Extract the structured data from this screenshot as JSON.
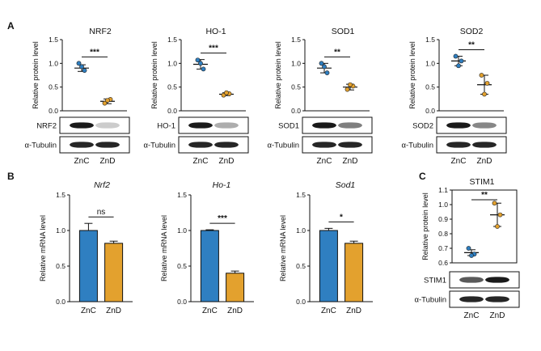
{
  "panels": {
    "A": {
      "letter": "A"
    },
    "B": {
      "letter": "B"
    },
    "C": {
      "letter": "C"
    }
  },
  "colors": {
    "znc": "#2f7fc1",
    "znd": "#e3a12e",
    "axis": "#111111",
    "band": "#1a1a1a"
  },
  "chart_data": [
    {
      "id": "a1",
      "type": "scatter",
      "title": "NRF2",
      "ylabel": "Relative protein level",
      "categories": [
        "ZnC",
        "ZnD"
      ],
      "ylim": [
        0,
        1.5
      ],
      "yticks": [
        "0.0",
        "0.5",
        "1.0",
        "1.5"
      ],
      "points": [
        [
          1.0,
          0.85,
          0.93
        ],
        [
          0.16,
          0.24,
          0.22
        ]
      ],
      "mean": [
        0.9,
        0.2
      ],
      "sd": [
        0.07,
        0.05
      ],
      "sig": "***",
      "blot_labels": [
        "NRF2",
        "α-Tubulin"
      ]
    },
    {
      "id": "a2",
      "type": "scatter",
      "title": "HO-1",
      "ylabel": "Relative protein level",
      "categories": [
        "ZnC",
        "ZnD"
      ],
      "ylim": [
        0,
        1.5
      ],
      "yticks": [
        "0.0",
        "0.5",
        "1.0",
        "1.5"
      ],
      "points": [
        [
          1.07,
          0.88,
          1.0
        ],
        [
          0.33,
          0.36,
          0.38
        ]
      ],
      "mean": [
        0.98,
        0.35
      ],
      "sd": [
        0.1,
        0.03
      ],
      "sig": "***",
      "blot_labels": [
        "HO-1",
        "α-Tubulin"
      ]
    },
    {
      "id": "a3",
      "type": "scatter",
      "title": "SOD1",
      "ylabel": "Relative protein level",
      "categories": [
        "ZnC",
        "ZnD"
      ],
      "ylim": [
        0,
        1.5
      ],
      "yticks": [
        "0.0",
        "0.5",
        "1.0",
        "1.5"
      ],
      "points": [
        [
          1.0,
          0.8,
          0.93
        ],
        [
          0.45,
          0.52,
          0.55
        ]
      ],
      "mean": [
        0.9,
        0.5
      ],
      "sd": [
        0.1,
        0.06
      ],
      "sig": "**",
      "blot_labels": [
        "SOD1",
        "α-Tubulin"
      ]
    },
    {
      "id": "a4",
      "type": "scatter",
      "title": "SOD2",
      "ylabel": "Relative protein level",
      "categories": [
        "ZnC",
        "ZnD"
      ],
      "ylim": [
        0,
        1.5
      ],
      "yticks": [
        "0.0",
        "0.5",
        "1.0",
        "1.5"
      ],
      "points": [
        [
          1.15,
          1.05,
          0.95
        ],
        [
          0.75,
          0.58,
          0.35
        ]
      ],
      "mean": [
        1.05,
        0.55
      ],
      "sd": [
        0.1,
        0.2
      ],
      "sig": "**",
      "blot_labels": [
        "SOD2",
        "α-Tubulin"
      ]
    },
    {
      "id": "b1",
      "type": "bar",
      "title": "Nrf2",
      "ylabel": "Relative mRNA level",
      "categories": [
        "ZnC",
        "ZnD"
      ],
      "ylim": [
        0,
        1.5
      ],
      "yticks": [
        "0.0",
        "0.5",
        "1.0",
        "1.5"
      ],
      "values": [
        1.0,
        0.82
      ],
      "err": [
        0.1,
        0.03
      ],
      "sig": "ns"
    },
    {
      "id": "b2",
      "type": "bar",
      "title": "Ho-1",
      "ylabel": "Relative mRNA level",
      "categories": [
        "ZnC",
        "ZnD"
      ],
      "ylim": [
        0,
        1.5
      ],
      "yticks": [
        "0.0",
        "0.5",
        "1.0",
        "1.5"
      ],
      "values": [
        1.0,
        0.4
      ],
      "err": [
        0.01,
        0.03
      ],
      "sig": "***"
    },
    {
      "id": "b3",
      "type": "bar",
      "title": "Sod1",
      "ylabel": "Relative mRNA level",
      "categories": [
        "ZnC",
        "ZnD"
      ],
      "ylim": [
        0,
        1.5
      ],
      "yticks": [
        "0.0",
        "0.5",
        "1.0",
        "1.5"
      ],
      "values": [
        1.0,
        0.82
      ],
      "err": [
        0.03,
        0.03
      ],
      "sig": "*"
    },
    {
      "id": "c1",
      "type": "scatter",
      "title": "STIM1",
      "ylabel": "Relative protein level",
      "categories": [
        "ZnC",
        "ZnD"
      ],
      "ylim": [
        0.6,
        1.1
      ],
      "yticks": [
        "0.6",
        "0.7",
        "0.8",
        "0.9",
        "1.0",
        "1.1"
      ],
      "points": [
        [
          0.7,
          0.66,
          0.65
        ],
        [
          1.01,
          0.93,
          0.85
        ]
      ],
      "mean": [
        0.67,
        0.93
      ],
      "sd": [
        0.02,
        0.08
      ],
      "sig": "**",
      "blot_labels": [
        "STIM1",
        "α-Tubulin"
      ]
    }
  ]
}
